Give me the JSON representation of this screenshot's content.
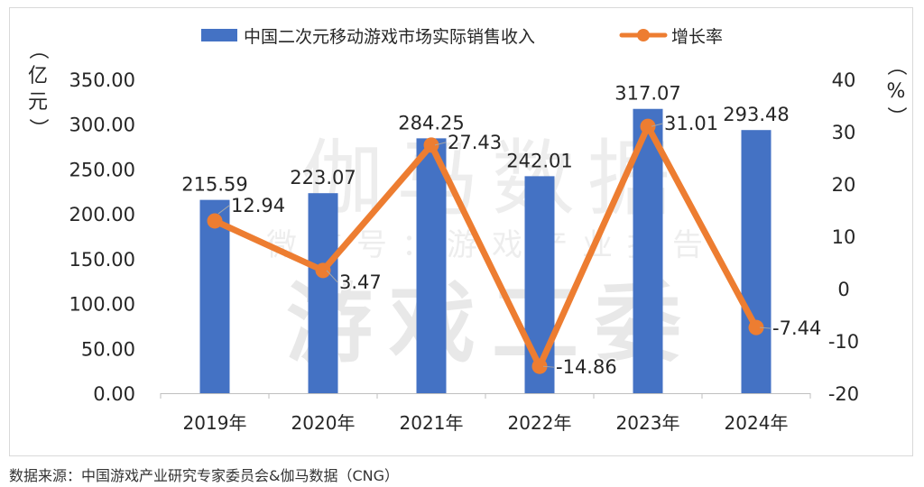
{
  "chart_data": {
    "type": "bar+line",
    "categories": [
      "2019年",
      "2020年",
      "2021年",
      "2022年",
      "2023年",
      "2024年"
    ],
    "series": [
      {
        "name": "中国二次元移动游戏市场实际销售收入",
        "type": "bar",
        "axis": "left",
        "values": [
          215.59,
          223.07,
          284.25,
          242.01,
          317.07,
          293.48
        ],
        "labels": [
          "215.59",
          "223.07",
          "284.25",
          "242.01",
          "317.07",
          "293.48"
        ],
        "color": "#4472c4"
      },
      {
        "name": "增长率",
        "type": "line",
        "axis": "right",
        "values": [
          12.94,
          3.47,
          27.43,
          -14.86,
          31.01,
          -7.44
        ],
        "labels": [
          "12.94",
          "3.47",
          "27.43",
          "-14.86",
          "31.01",
          "-7.44"
        ],
        "color": "#ed7d31"
      }
    ],
    "y_left": {
      "label": "（亿元）",
      "ylim": [
        0,
        350
      ],
      "ticks": [
        "0.00",
        "50.00",
        "100.00",
        "150.00",
        "200.00",
        "250.00",
        "300.00",
        "350.00"
      ]
    },
    "y_right": {
      "label": "（%）",
      "ylim": [
        -20,
        40
      ],
      "ticks": [
        "-20",
        "-10",
        "0",
        "10",
        "20",
        "30",
        "40"
      ]
    },
    "legend_position": "top",
    "grid": false,
    "watermark": [
      "伽马数据",
      "微信号：游戏产业报告",
      "游戏工委"
    ]
  },
  "source_note": "数据来源：中国游戏产业研究专家委员会&伽马数据（CNG）"
}
